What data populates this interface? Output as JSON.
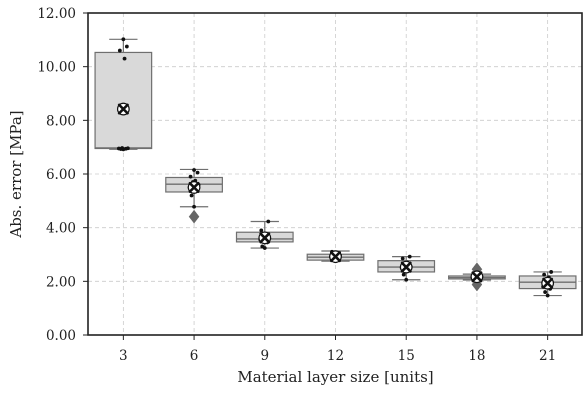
{
  "chart_data": {
    "type": "box",
    "title": "",
    "xlabel": "Material layer size [units]",
    "ylabel": "Abs. error [MPa]",
    "categories": [
      "3",
      "6",
      "9",
      "12",
      "15",
      "18",
      "21"
    ],
    "y_ticks": [
      "0.00",
      "2.00",
      "4.00",
      "6.00",
      "8.00",
      "10.00",
      "12.00"
    ],
    "ylim": [
      0,
      12
    ],
    "grid": true,
    "legend": "none",
    "colors": {
      "box_fill": "#d9d9d9",
      "box_edge": "#6f6f6f",
      "points": "#111111",
      "outlier": "#666666",
      "mean_marker": "#111111",
      "grid": "#cccccc",
      "axis": "#222222"
    },
    "boxes": [
      {
        "category": "3",
        "whisker_low": 6.92,
        "q1": 6.95,
        "median": 6.97,
        "q3": 10.53,
        "whisker_high": 11.02,
        "mean": 8.42,
        "outliers": [],
        "points": [
          6.92,
          6.93,
          6.94,
          6.95,
          6.96,
          6.97,
          10.3,
          10.6,
          10.75,
          11.02
        ]
      },
      {
        "category": "6",
        "whisker_low": 4.78,
        "q1": 5.33,
        "median": 5.62,
        "q3": 5.87,
        "whisker_high": 6.17,
        "mean": 5.5,
        "outliers": [
          4.41
        ],
        "points": [
          4.78,
          5.2,
          5.4,
          5.5,
          5.6,
          5.7,
          5.75,
          5.9,
          6.05,
          6.15
        ]
      },
      {
        "category": "9",
        "whisker_low": 3.24,
        "q1": 3.47,
        "median": 3.58,
        "q3": 3.83,
        "whisker_high": 4.23,
        "mean": 3.62,
        "outliers": [],
        "points": [
          3.24,
          3.3,
          3.45,
          3.55,
          3.6,
          3.65,
          3.75,
          3.9,
          4.23
        ]
      },
      {
        "category": "12",
        "whisker_low": 2.75,
        "q1": 2.79,
        "median": 2.9,
        "q3": 3.01,
        "whisker_high": 3.13,
        "mean": 2.92,
        "outliers": [],
        "points": [
          2.75,
          2.82,
          2.88,
          2.92,
          2.97,
          3.02,
          3.05,
          3.1
        ]
      },
      {
        "category": "15",
        "whisker_low": 2.06,
        "q1": 2.35,
        "median": 2.53,
        "q3": 2.77,
        "whisker_high": 2.92,
        "mean": 2.53,
        "outliers": [],
        "points": [
          2.06,
          2.25,
          2.4,
          2.5,
          2.55,
          2.62,
          2.7,
          2.85,
          2.92
        ]
      },
      {
        "category": "18",
        "whisker_low": 2.05,
        "q1": 2.09,
        "median": 2.14,
        "q3": 2.2,
        "whisker_high": 2.27,
        "mean": 2.17,
        "outliers": [
          1.88,
          2.45
        ],
        "points": [
          2.05,
          2.1,
          2.12,
          2.15,
          2.18,
          2.2,
          2.25
        ]
      },
      {
        "category": "21",
        "whisker_low": 1.47,
        "q1": 1.73,
        "median": 1.97,
        "q3": 2.2,
        "whisker_high": 2.35,
        "mean": 1.93,
        "outliers": [],
        "points": [
          1.47,
          1.6,
          1.72,
          1.8,
          1.95,
          2.05,
          2.15,
          2.25,
          2.35
        ]
      }
    ]
  }
}
